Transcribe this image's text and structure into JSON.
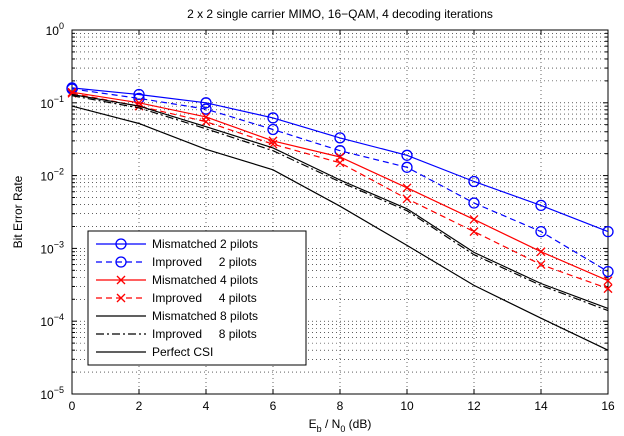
{
  "chart_data": {
    "type": "line",
    "title": "2 x 2 single carrier MIMO, 16−QAM, 4 decoding iterations",
    "xlabel": "E_b / N_0  (dB)",
    "xlabel_parts": {
      "main1": "E",
      "sub1": "b",
      "mid": " / N",
      "sub2": "0",
      "unit": "  (dB)"
    },
    "ylabel": "Bit Error Rate",
    "xlim": [
      0,
      16
    ],
    "ylim": [
      1e-05,
      1
    ],
    "yscale": "log",
    "grid": true,
    "legend_position": "lower-left",
    "x": [
      0,
      2,
      4,
      6,
      8,
      10,
      12,
      14,
      16
    ],
    "x_tick_labels": [
      "0",
      "2",
      "4",
      "6",
      "8",
      "10",
      "12",
      "14",
      "16"
    ],
    "y_tick_labels": [
      {
        "base": "10",
        "exp": "0",
        "value": 1
      },
      {
        "base": "10",
        "exp": "−1",
        "value": 0.1
      },
      {
        "base": "10",
        "exp": "−2",
        "value": 0.01
      },
      {
        "base": "10",
        "exp": "−3",
        "value": 0.001
      },
      {
        "base": "10",
        "exp": "−4",
        "value": 0.0001
      },
      {
        "base": "10",
        "exp": "−5",
        "value": 1e-05
      }
    ],
    "series": [
      {
        "name": "Mismatched 2 pilots",
        "color": "#0000ff",
        "dash": "solid",
        "marker": "circle",
        "values": [
          0.16,
          0.13,
          0.1,
          0.062,
          0.033,
          0.019,
          0.0083,
          0.0039,
          0.0017
        ]
      },
      {
        "name": "Improved     2 pilots",
        "color": "#0000ff",
        "dash": "dashed",
        "marker": "circle",
        "values": [
          0.155,
          0.115,
          0.082,
          0.043,
          0.022,
          0.013,
          0.0042,
          0.0017,
          0.00048
        ]
      },
      {
        "name": "Mismatched 4 pilots",
        "color": "#ff0000",
        "dash": "solid",
        "marker": "x",
        "values": [
          0.14,
          0.1,
          0.064,
          0.03,
          0.018,
          0.0068,
          0.0025,
          0.0009,
          0.00036
        ]
      },
      {
        "name": "Improved     4 pilots",
        "color": "#ff0000",
        "dash": "dashed",
        "marker": "x",
        "values": [
          0.135,
          0.09,
          0.055,
          0.027,
          0.015,
          0.0048,
          0.0017,
          0.0006,
          0.00028
        ]
      },
      {
        "name": "Mismatched 8 pilots",
        "color": "#000000",
        "dash": "solid",
        "marker": "none",
        "values": [
          0.13,
          0.09,
          0.047,
          0.024,
          0.0087,
          0.0035,
          0.00088,
          0.00033,
          0.00015
        ]
      },
      {
        "name": "Improved     8 pilots",
        "color": "#000000",
        "dash": "dashdot",
        "marker": "none",
        "values": [
          0.125,
          0.085,
          0.044,
          0.022,
          0.0082,
          0.0033,
          0.00082,
          0.00031,
          0.00014
        ]
      },
      {
        "name": "Perfect CSI",
        "color": "#000000",
        "dash": "solid",
        "marker": "none",
        "values": [
          0.09,
          0.052,
          0.023,
          0.012,
          0.0038,
          0.0011,
          0.00031,
          0.00011,
          4e-05
        ]
      }
    ]
  }
}
